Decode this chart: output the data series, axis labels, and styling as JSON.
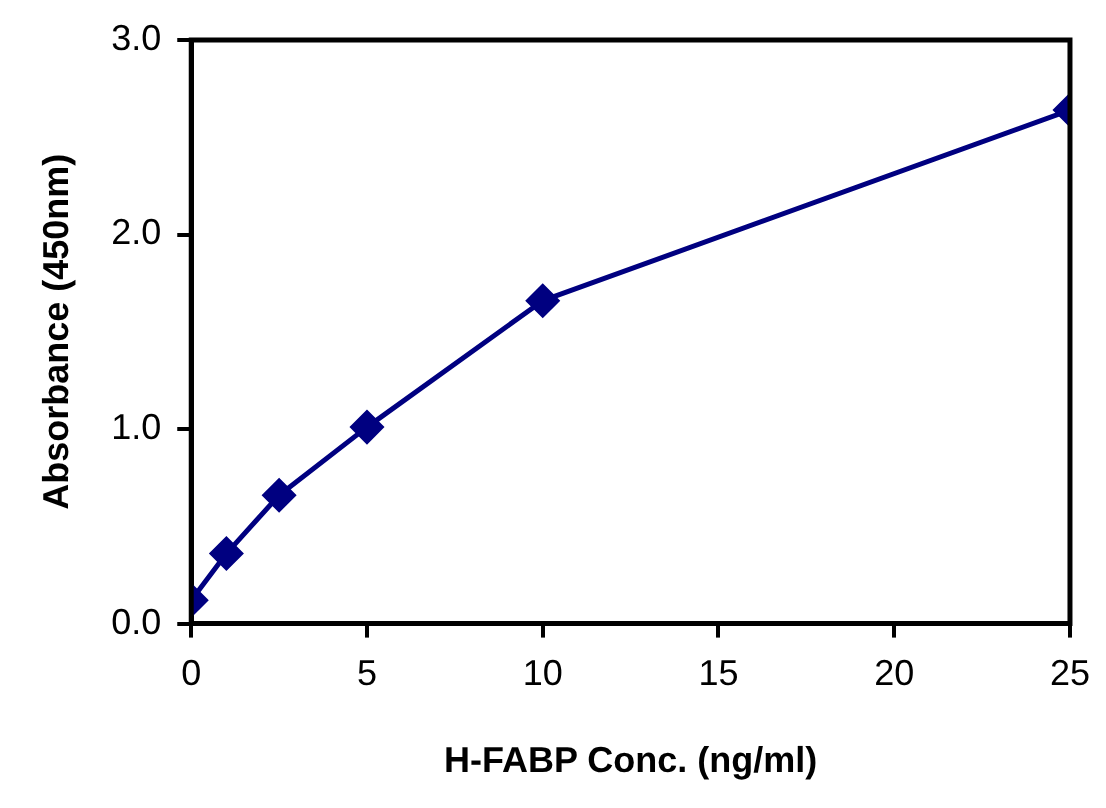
{
  "chart_data": {
    "type": "line",
    "xlabel": "H-FABP Conc. (ng/ml)",
    "ylabel": "Absorbance (450nm)",
    "x": [
      0,
      1,
      2.5,
      5,
      10,
      25
    ],
    "series": [
      {
        "color": "#000080",
        "values": [
          0.12,
          0.36,
          0.66,
          1.01,
          1.66,
          2.64
        ]
      }
    ],
    "xlim": [
      0,
      25
    ],
    "xticks": [
      0,
      5,
      10,
      15,
      20,
      25
    ],
    "ylim": [
      0,
      3
    ],
    "yticks": [
      {
        "value": 0,
        "label": "0.0"
      },
      {
        "value": 1,
        "label": "1.0"
      },
      {
        "value": 2,
        "label": "2.0"
      },
      {
        "value": 3,
        "label": "3.0"
      }
    ],
    "grid": false,
    "legend": false,
    "marker": "diamond",
    "line_style": "solid"
  }
}
